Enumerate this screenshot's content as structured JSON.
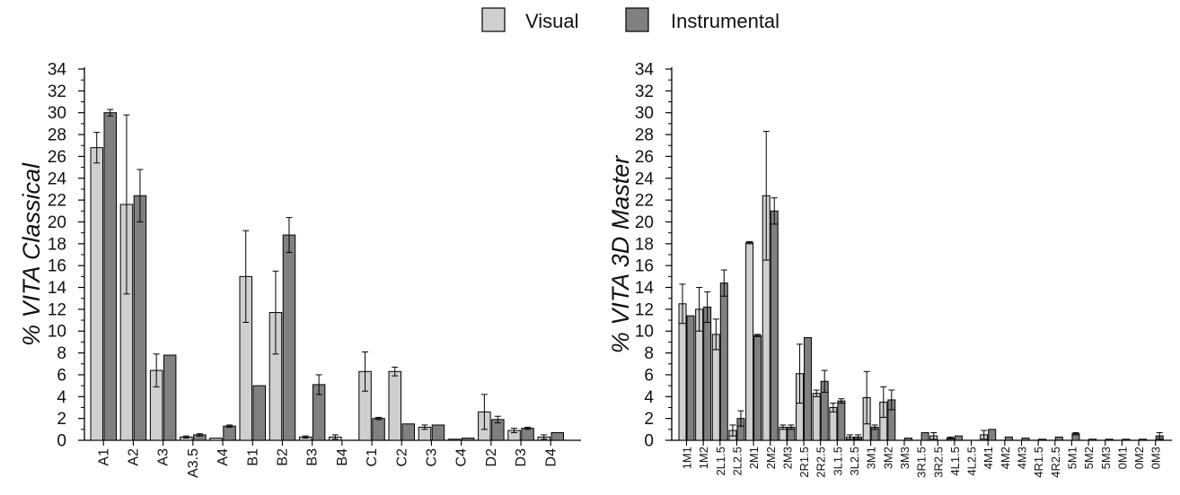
{
  "legend": {
    "position": "top-center",
    "entries": [
      {
        "name": "Visual",
        "color": "#cfcfcf"
      },
      {
        "name": "Instrumental",
        "color": "#808080"
      }
    ]
  },
  "chart_data": [
    {
      "type": "bar",
      "ylabel": "% VITA Classical",
      "xlabel": "",
      "ylim": [
        0,
        34
      ],
      "yticks": [
        0,
        2,
        4,
        6,
        8,
        10,
        12,
        14,
        16,
        18,
        20,
        22,
        24,
        26,
        28,
        30,
        32,
        34
      ],
      "grid": false,
      "categories": [
        "A1",
        "A2",
        "A3",
        "A3.5",
        "A4",
        "B1",
        "B2",
        "B3",
        "B4",
        "C1",
        "C2",
        "C3",
        "C4",
        "D2",
        "D3",
        "D4"
      ],
      "series": [
        {
          "name": "Visual",
          "color": "#cfcfcf",
          "values": [
            26.8,
            21.6,
            6.4,
            0.3,
            0.2,
            15.0,
            11.7,
            0.3,
            0.3,
            6.3,
            6.3,
            1.2,
            0.1,
            2.6,
            0.9,
            0.3
          ],
          "errors": [
            1.4,
            8.2,
            1.5,
            0.1,
            0.0,
            4.2,
            3.8,
            0.1,
            0.2,
            1.8,
            0.4,
            0.2,
            0.0,
            1.6,
            0.2,
            0.2
          ]
        },
        {
          "name": "Instrumental",
          "color": "#808080",
          "values": [
            30.0,
            22.4,
            7.8,
            0.5,
            1.3,
            5.0,
            18.8,
            5.1,
            0,
            2.0,
            1.5,
            1.4,
            0.2,
            1.9,
            1.1,
            0.7
          ],
          "errors": [
            0.3,
            2.4,
            0,
            0.1,
            0.1,
            0,
            1.6,
            0.9,
            0,
            0.1,
            0,
            0,
            0,
            0.3,
            0.1,
            0
          ]
        }
      ]
    },
    {
      "type": "bar",
      "ylabel": "% VITA 3D Master",
      "xlabel": "",
      "ylim": [
        0,
        34
      ],
      "yticks": [
        0,
        2,
        4,
        6,
        8,
        10,
        12,
        14,
        16,
        18,
        20,
        22,
        24,
        26,
        28,
        30,
        32,
        34
      ],
      "grid": false,
      "categories": [
        "1M1",
        "1M2",
        "2L1.5",
        "2L2.5",
        "2M1",
        "2M2",
        "2M3",
        "2R1.5",
        "2R2.5",
        "3L1.5",
        "3L2.5",
        "3M1",
        "3M2",
        "3M3",
        "3R1.5",
        "3R2.5",
        "4L1.5",
        "4L2.5",
        "4M1",
        "4M2",
        "4M3",
        "4R1.5",
        "4R2.5",
        "5M1",
        "5M2",
        "5M3",
        "0M1",
        "0M2",
        "0M3"
      ],
      "series": [
        {
          "name": "Visual",
          "color": "#cfcfcf",
          "values": [
            12.5,
            12.0,
            9.7,
            0.9,
            18.1,
            22.4,
            1.2,
            6.1,
            4.3,
            3.0,
            0.3,
            3.9,
            3.5,
            0,
            0,
            0.4,
            0.2,
            0,
            0.5,
            0,
            0,
            0,
            0,
            0,
            0,
            0,
            0,
            0,
            0
          ],
          "errors": [
            1.8,
            2.0,
            1.4,
            0.5,
            0.1,
            5.9,
            0.2,
            2.7,
            0.3,
            0.4,
            0.2,
            2.4,
            1.4,
            0,
            0,
            0.3,
            0.1,
            0,
            0.4,
            0,
            0,
            0,
            0,
            0,
            0,
            0,
            0,
            0,
            0
          ]
        },
        {
          "name": "Instrumental",
          "color": "#808080",
          "values": [
            11.4,
            12.2,
            14.4,
            2.0,
            9.6,
            21.0,
            1.2,
            9.4,
            5.4,
            3.6,
            0.3,
            1.2,
            3.7,
            0.2,
            0.7,
            0,
            0.4,
            0,
            1.0,
            0.3,
            0.2,
            0.1,
            0.3,
            0.6,
            0.1,
            0.1,
            0.1,
            0.1,
            0.4
          ],
          "errors": [
            0,
            1.4,
            1.2,
            0.7,
            0.1,
            1.2,
            0.2,
            0,
            1.0,
            0.2,
            0.2,
            0.2,
            0.9,
            0,
            0,
            0,
            0,
            0,
            0,
            0,
            0,
            0,
            0,
            0.1,
            0,
            0,
            0,
            0,
            0.3
          ]
        }
      ]
    }
  ]
}
